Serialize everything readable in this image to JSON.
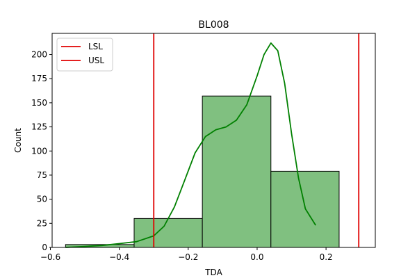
{
  "chart_data": {
    "type": "bar",
    "title": "BL008",
    "xlabel": "TDA",
    "ylabel": "Count",
    "xlim": [
      -0.595,
      0.343
    ],
    "ylim": [
      0,
      222
    ],
    "xticks": [
      -0.6,
      -0.4,
      -0.2,
      0.0,
      0.2
    ],
    "xtick_labels": [
      "−0.6",
      "−0.4",
      "−0.2",
      "0.0",
      "0.2"
    ],
    "yticks": [
      0,
      25,
      50,
      75,
      100,
      125,
      150,
      175,
      200
    ],
    "ytick_labels": [
      "0",
      "25",
      "50",
      "75",
      "100",
      "125",
      "150",
      "175",
      "200"
    ],
    "bins": [
      {
        "x0": -0.556,
        "x1": -0.357,
        "count": 3
      },
      {
        "x0": -0.357,
        "x1": -0.159,
        "count": 30
      },
      {
        "x0": -0.159,
        "x1": 0.04,
        "count": 157
      },
      {
        "x0": 0.04,
        "x1": 0.238,
        "count": 79
      }
    ],
    "kde": {
      "name": "KDE",
      "color": "#008000",
      "x": [
        -0.556,
        -0.5,
        -0.45,
        -0.4,
        -0.35,
        -0.3,
        -0.27,
        -0.24,
        -0.21,
        -0.18,
        -0.15,
        -0.12,
        -0.09,
        -0.06,
        -0.03,
        0.0,
        0.02,
        0.04,
        0.06,
        0.08,
        0.1,
        0.12,
        0.14,
        0.17
      ],
      "y": [
        0,
        1,
        2,
        4,
        6,
        12,
        22,
        42,
        70,
        98,
        115,
        122,
        125,
        132,
        148,
        178,
        200,
        212,
        204,
        170,
        118,
        72,
        40,
        23
      ]
    },
    "vlines": [
      {
        "name": "LSL",
        "x": -0.3,
        "color": "#e00000"
      },
      {
        "name": "USL",
        "x": 0.295,
        "color": "#e00000"
      }
    ],
    "bar_fill": "#80c080",
    "bar_edge": "#000000",
    "grid": false,
    "legend": {
      "placement": "top-left",
      "entries": [
        "LSL",
        "USL"
      ]
    }
  }
}
